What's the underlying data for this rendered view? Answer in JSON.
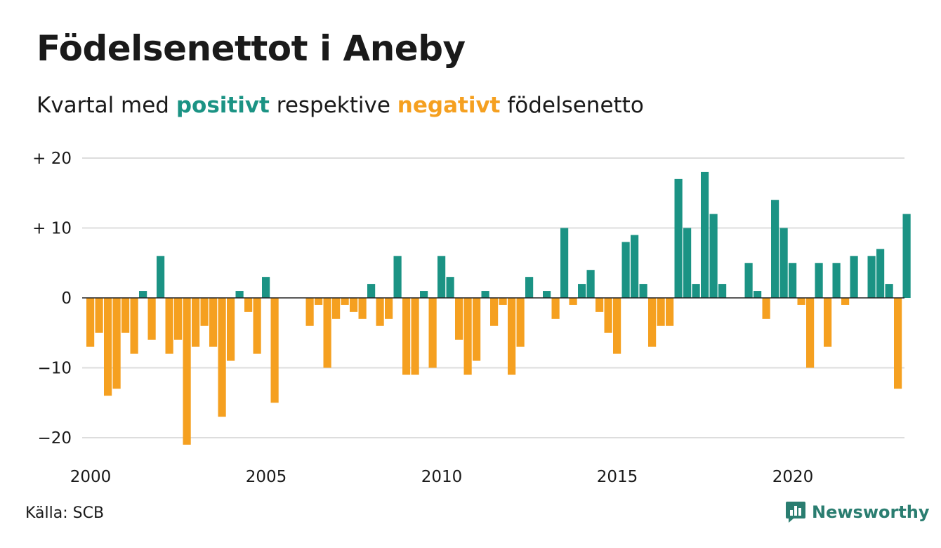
{
  "title": "Födelsenettot i Aneby",
  "subtitle": {
    "prefix": "Kvartal med",
    "positive_word": "positivt",
    "middle": "respektive",
    "negative_word": "negativt",
    "suffix": "födelsenetto"
  },
  "source": "Källa: SCB",
  "brand": "Newsworthy",
  "colors": {
    "positive": "#1b9384",
    "negative": "#f5a020",
    "grid": "#dddddd",
    "zero_line": "#222222",
    "logo": "#2a7d70"
  },
  "chart_data": {
    "type": "bar",
    "title": "Födelsenettot i Aneby",
    "subtitle": "Kvartal med positivt respektive negativt födelsenetto",
    "xlabel": "",
    "ylabel": "",
    "ylim": [
      -21,
      20
    ],
    "yticks": [
      {
        "value": 20,
        "label": "+ 20"
      },
      {
        "value": 10,
        "label": "+ 10"
      },
      {
        "value": 0,
        "label": "0"
      },
      {
        "value": -10,
        "label": "−10"
      },
      {
        "value": -20,
        "label": "−20"
      }
    ],
    "xticks": [
      "2000",
      "2005",
      "2010",
      "2015",
      "2020"
    ],
    "grid": true,
    "start_year": 2000,
    "values": [
      -7,
      -5,
      -14,
      -13,
      -5,
      -8,
      1,
      -6,
      6,
      -8,
      -6,
      -21,
      -7,
      -4,
      -7,
      -17,
      -9,
      1,
      -2,
      -8,
      3,
      -15,
      0,
      0,
      0,
      -4,
      -1,
      -10,
      -3,
      -1,
      -2,
      -3,
      2,
      -4,
      -3,
      6,
      -11,
      -11,
      1,
      -10,
      6,
      3,
      -6,
      -11,
      -9,
      1,
      -4,
      -1,
      -11,
      -7,
      3,
      0,
      1,
      -3,
      10,
      -1,
      2,
      4,
      -2,
      -5,
      -8,
      8,
      9,
      2,
      -7,
      -4,
      -4,
      17,
      10,
      2,
      18,
      12,
      2,
      0,
      0,
      5,
      1,
      -3,
      14,
      10,
      5,
      -1,
      -10,
      5,
      -7,
      5,
      -1,
      6,
      0,
      6,
      7,
      2,
      -13,
      12
    ]
  }
}
